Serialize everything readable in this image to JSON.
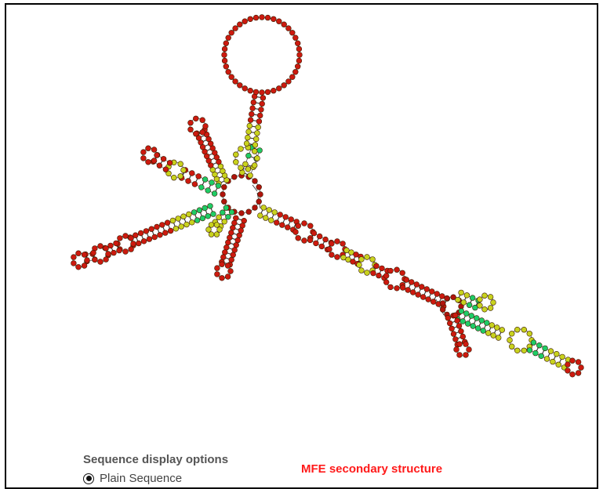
{
  "sequence_options": {
    "title": "Sequence display options",
    "selected_option": "Plain Sequence"
  },
  "structure": {
    "label": "MFE secondary structure",
    "colors": {
      "paired_high": "#cc1a0f",
      "paired_mid": "#c8d21e",
      "paired_low": "#1fcc66",
      "unpaired": "#b0140c",
      "backbone": "#222222"
    }
  }
}
